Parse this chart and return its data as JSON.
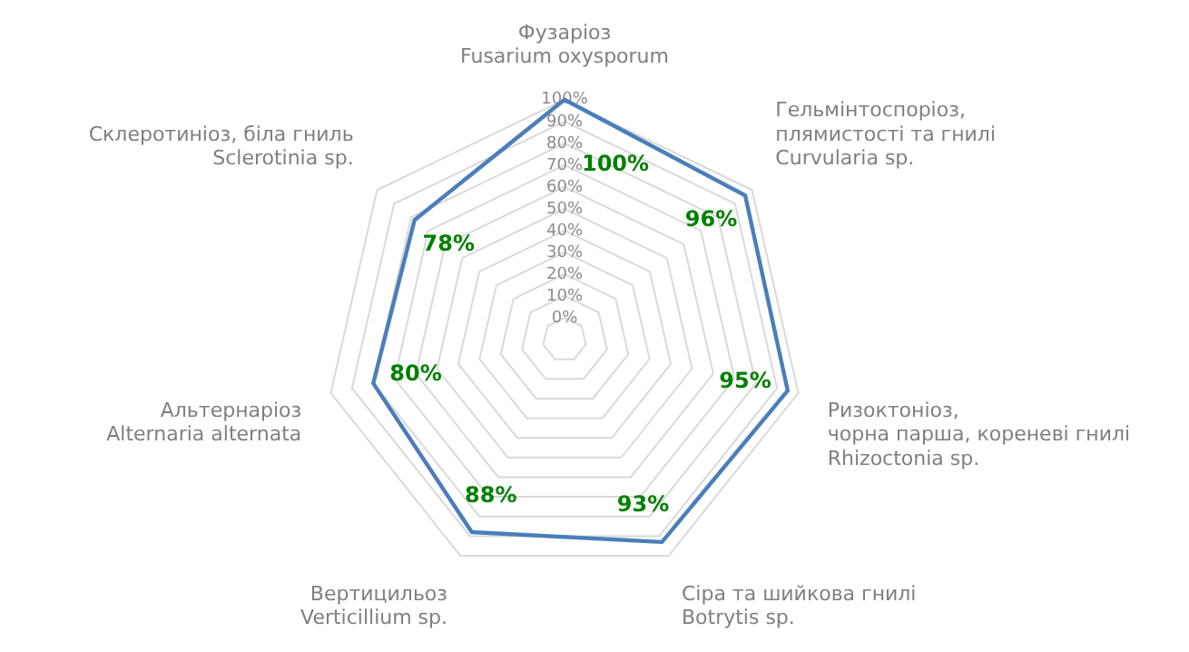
{
  "chart_data": {
    "type": "radar",
    "categories": [
      "Фузаріоз\nFusarium oxysporum",
      "Гельмінтоспоріоз,\nплямистості та гнилі\nCurvularia sp.",
      "Ризоктоніоз,\nчорна парша, кореневі гнилі\nRhizoctonia sp.",
      "Сіра та шийкова гнилі\nBotrytis sp.",
      "Вертицильоз\nVerticillium sp.",
      "Альтернаріоз\nAlternaria alternata",
      "Склеротиніоз, біла гниль\nSclerotinia sp."
    ],
    "series": [
      {
        "color": "#4a7ebb",
        "values": [
          100,
          96,
          95,
          93,
          88,
          80,
          78
        ],
        "value_labels": [
          "100%",
          "96%",
          "95%",
          "93%",
          "88%",
          "80%",
          "78%"
        ]
      }
    ],
    "ylim": [
      -10,
      100
    ],
    "yticks": [
      {
        "value": 0,
        "label": "0%"
      },
      {
        "value": 10,
        "label": "10%"
      },
      {
        "value": 20,
        "label": "20%"
      },
      {
        "value": 30,
        "label": "30%"
      },
      {
        "value": 40,
        "label": "40%"
      },
      {
        "value": 50,
        "label": "50%"
      },
      {
        "value": 60,
        "label": "60%"
      },
      {
        "value": 70,
        "label": "70%"
      },
      {
        "value": 80,
        "label": "80%"
      },
      {
        "value": 90,
        "label": "90%"
      },
      {
        "value": 100,
        "label": "100%"
      }
    ],
    "grid": true,
    "legend": false,
    "marker": "none"
  }
}
